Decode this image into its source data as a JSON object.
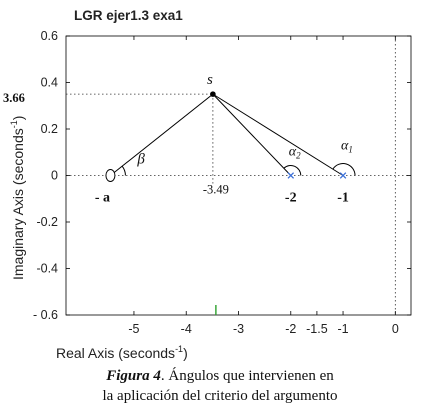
{
  "chart_data": {
    "type": "scatter",
    "title": "LGR ejer1.3 exa1",
    "xlabel": "Real Axis  (seconds",
    "xlabel_sup": "-1",
    "xlabel_close": ")",
    "ylabel": "Imaginary Axis  (seconds",
    "ylabel_sup": "-1",
    "ylabel_close": ")",
    "xlim": [
      -6.3,
      0.3
    ],
    "ylim": [
      -0.6,
      0.6
    ],
    "x_ticks": [
      {
        "value": -5,
        "label": "-5"
      },
      {
        "value": -4,
        "label": "-4"
      },
      {
        "value": -3,
        "label": "-3"
      },
      {
        "value": -2,
        "label": "-2"
      },
      {
        "value": -1.5,
        "label": "-1.5"
      },
      {
        "value": -1,
        "label": "-1"
      },
      {
        "value": 0,
        "label": "0"
      }
    ],
    "y_ticks": [
      {
        "value": 0.6,
        "label": "0.6"
      },
      {
        "value": 0.4,
        "label": "0.4"
      },
      {
        "value": 0.2,
        "label": "0.2"
      },
      {
        "value": 0,
        "label": "0"
      },
      {
        "value": -0.2,
        "label": "-0.2"
      },
      {
        "value": -0.4,
        "label": "-0.4"
      },
      {
        "value": -0.6,
        "label": "- 0.6"
      }
    ],
    "grid": false,
    "colors": {
      "poles": "#3a6fd8",
      "lines": "#000000",
      "dotted": "#333333",
      "green_tick": "#2ca02c"
    },
    "point_s": {
      "x": -3.49,
      "y": 0.35,
      "label": "s",
      "value_label": "3.66"
    },
    "poles": [
      {
        "x": -2,
        "y": 0,
        "label": "-2",
        "angle_label": "α",
        "angle_sub": "2"
      },
      {
        "x": -1,
        "y": 0,
        "label": "-1",
        "angle_label": "α",
        "angle_sub": "1"
      }
    ],
    "zero": {
      "x": -5.45,
      "y": 0,
      "label": "- a",
      "angle_label": "β"
    },
    "s_real_label": "-3.49"
  },
  "caption": {
    "figure_label": "Figura 4",
    "line1_rest": ". Ángulos  que intervienen en",
    "line2": "la aplicación del criterio del argumento"
  }
}
